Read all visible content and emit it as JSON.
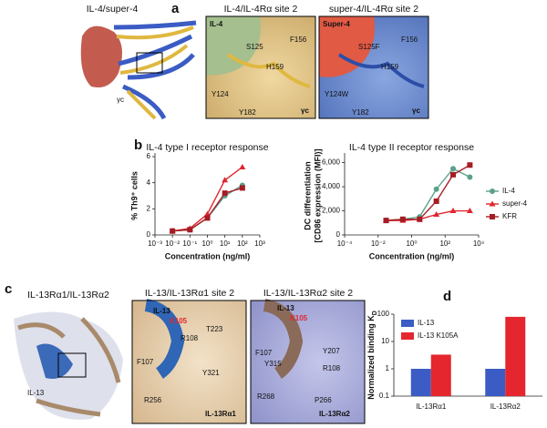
{
  "panels": [
    {
      "letter": "a",
      "overview": {
        "title": "IL-4/super-4",
        "labels": [
          "γc"
        ]
      },
      "insets": [
        {
          "title": "IL-4/IL-4Rα site 2",
          "labels": [
            "IL-4",
            "S125",
            "F156",
            "H159",
            "Y124",
            "Y182",
            "γc"
          ]
        },
        {
          "title": "super-4/IL-4Rα site 2",
          "labels": [
            "Super-4",
            "S125F",
            "F156",
            "H159",
            "Y124W",
            "Y182",
            "γc"
          ]
        }
      ]
    },
    {
      "letter": "b"
    },
    {
      "letter": "c",
      "overview": {
        "title": "IL-13Rα1/IL-13Rα2",
        "labels": [
          "IL-13"
        ]
      },
      "insets": [
        {
          "title": "IL-13/IL-13Rα1 site 2",
          "labels": [
            "IL-13",
            "K105",
            "R108",
            "T223",
            "F107",
            "Y321",
            "R256",
            "IL-13Rα1"
          ]
        },
        {
          "title": "IL-13/IL-13Rα2 site 2",
          "labels": [
            "IL-13",
            "K105",
            "Y207",
            "F107",
            "Y315",
            "R108",
            "R268",
            "P266",
            "IL-13Rα2"
          ]
        }
      ]
    },
    {
      "letter": "d"
    }
  ],
  "chart_data": [
    {
      "type": "line",
      "title": "IL-4 type I receptor response",
      "xlabel": "Concentration (ng/ml)",
      "ylabel": "% Th9⁺ cells",
      "xlog": true,
      "xlim": [
        0.001,
        1000
      ],
      "xticks": [
        {
          "value": 0.001,
          "label": "10⁻³"
        },
        {
          "value": 0.01,
          "label": "10⁻²"
        },
        {
          "value": 0.1,
          "label": "10⁻¹"
        },
        {
          "value": 1,
          "label": "10⁰"
        },
        {
          "value": 10,
          "label": "10¹"
        },
        {
          "value": 100,
          "label": "10²"
        },
        {
          "value": 1000,
          "label": "10³"
        }
      ],
      "ylim": [
        0,
        6
      ],
      "yticks": [
        0,
        2,
        4,
        6
      ],
      "x": [
        0.01,
        0.1,
        1,
        10,
        100
      ],
      "series": [
        {
          "color": "#5ba08a",
          "marker": "circle",
          "values": [
            0.3,
            0.4,
            1.3,
            3.0,
            3.8
          ]
        },
        {
          "color": "#e0262e",
          "marker": "triangle",
          "values": [
            0.3,
            0.5,
            1.6,
            4.2,
            5.2
          ]
        },
        {
          "color": "#a51c24",
          "marker": "square",
          "values": [
            0.3,
            0.4,
            1.3,
            3.2,
            3.6
          ]
        }
      ]
    },
    {
      "type": "line",
      "title": "IL-4 type II receptor response",
      "xlabel": "Concentration (ng/ml)",
      "ylabel": [
        "DC differentiation",
        "[CD86 expression (MFI)]"
      ],
      "xlog": true,
      "xlim": [
        0.0001,
        10000
      ],
      "xticks": [
        {
          "value": 0.0001,
          "label": "10⁻⁴"
        },
        {
          "value": 0.01,
          "label": "10⁻²"
        },
        {
          "value": 1,
          "label": "10⁰"
        },
        {
          "value": 100,
          "label": "10²"
        },
        {
          "value": 10000,
          "label": "10⁴"
        }
      ],
      "ylim": [
        0,
        6500
      ],
      "yticks": [
        0,
        {
          "value": 2000,
          "label": "2,000"
        },
        {
          "value": 4000,
          "label": "4,000"
        },
        {
          "value": 6000,
          "label": "6,000"
        }
      ],
      "x": [
        0.03,
        0.3,
        3,
        30,
        300,
        3000
      ],
      "series": [
        {
          "name": "IL-4",
          "color": "#5ba08a",
          "marker": "circle",
          "values": [
            1200,
            1300,
            1500,
            3800,
            5500,
            4800
          ]
        },
        {
          "name": "super-4",
          "color": "#e0262e",
          "marker": "triangle",
          "values": [
            1200,
            1200,
            1300,
            1700,
            2000,
            2000
          ]
        },
        {
          "name": "KFR",
          "color": "#a51c24",
          "marker": "square",
          "values": [
            1200,
            1300,
            1300,
            2800,
            5000,
            5800
          ]
        }
      ]
    },
    {
      "type": "bar",
      "ylabel": "Normalized binding K",
      "ylabel_subscript": "D",
      "ylog": true,
      "ylim": [
        0.1,
        100
      ],
      "yticks": [
        0.1,
        1,
        10,
        100
      ],
      "categories": [
        "IL-13Rα1",
        "IL-13Rα2"
      ],
      "series": [
        {
          "name": "IL-13",
          "color": "#3b5cc4",
          "values": [
            1,
            1
          ]
        },
        {
          "name": "IL-13 K105A",
          "color": "#e5262e",
          "values": [
            3.3,
            80
          ]
        }
      ]
    }
  ]
}
